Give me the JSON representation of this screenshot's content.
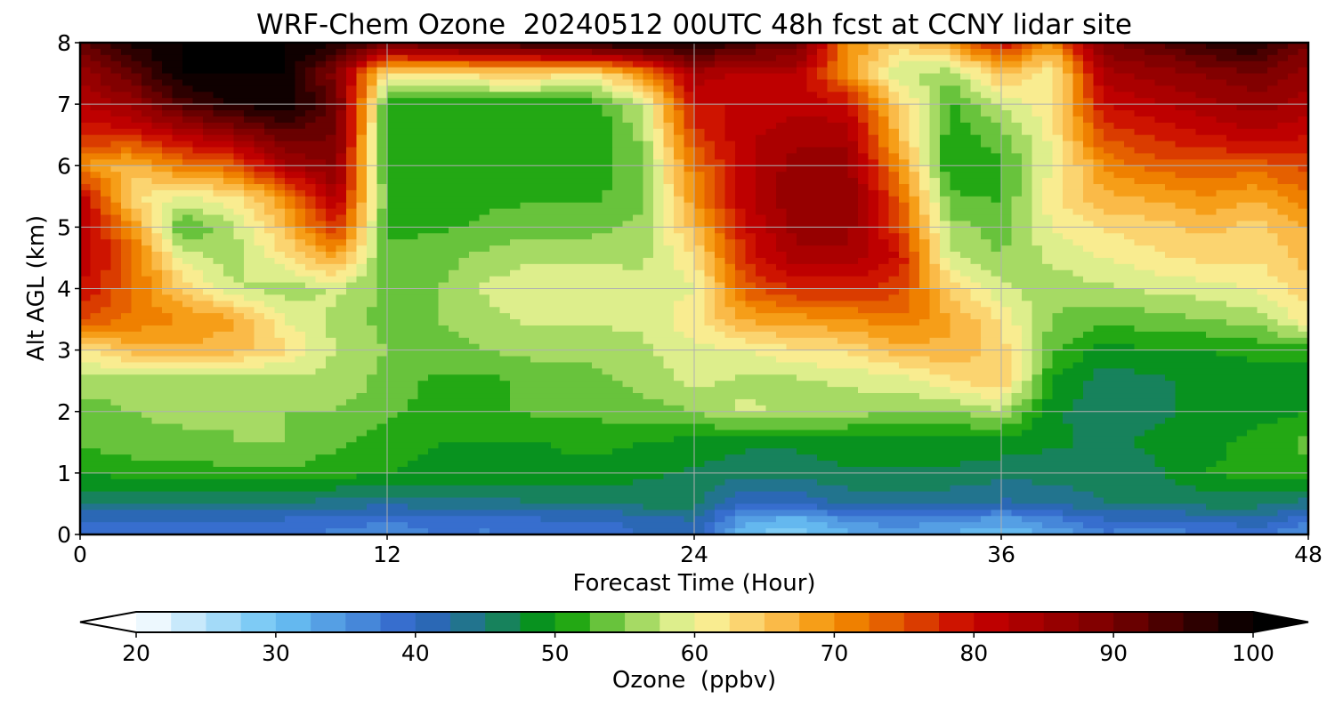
{
  "chart_data": {
    "type": "heatmap",
    "title": "WRF-Chem Ozone  20240512 00UTC 48h fcst at CCNY lidar site",
    "xlabel": "Forecast Time (Hour)",
    "ylabel": "Alt AGL (km)",
    "xlim": [
      0,
      48
    ],
    "ylim": [
      0,
      8
    ],
    "x_ticks": [
      0,
      12,
      24,
      36,
      48
    ],
    "y_ticks": [
      0,
      1,
      2,
      3,
      4,
      5,
      6,
      7,
      8
    ],
    "grid": true,
    "colorbar": {
      "label": "Ozone  (ppbv)",
      "min": 20,
      "max": 100,
      "ticks": [
        20,
        30,
        40,
        50,
        60,
        70,
        80,
        90,
        100
      ],
      "extend": "both",
      "orientation": "horizontal",
      "placement": "bottom",
      "color_stops": [
        {
          "value": 20,
          "color": "#ffffff"
        },
        {
          "value": 30,
          "color": "#6cc4f4"
        },
        {
          "value": 40,
          "color": "#2f62c8"
        },
        {
          "value": 45,
          "color": "#1e7a7a"
        },
        {
          "value": 50,
          "color": "#009a00"
        },
        {
          "value": 55,
          "color": "#8ad050"
        },
        {
          "value": 60,
          "color": "#f8f8a0"
        },
        {
          "value": 65,
          "color": "#fcc860"
        },
        {
          "value": 70,
          "color": "#f49000"
        },
        {
          "value": 75,
          "color": "#e05000"
        },
        {
          "value": 80,
          "color": "#c80000"
        },
        {
          "value": 90,
          "color": "#780000"
        },
        {
          "value": 100,
          "color": "#000000"
        }
      ],
      "under_color": "#ffffff",
      "over_color": "#000000"
    },
    "z_grid": {
      "x": [
        0,
        2,
        4,
        6,
        8,
        10,
        12,
        14,
        16,
        18,
        20,
        22,
        24,
        26,
        28,
        30,
        32,
        34,
        36,
        38,
        40,
        42,
        44,
        46,
        48
      ],
      "y": [
        0,
        0.25,
        0.5,
        1,
        1.5,
        2,
        2.5,
        3,
        3.5,
        4,
        4.5,
        5,
        5.5,
        6,
        6.5,
        7,
        7.5,
        8
      ],
      "values": [
        [
          38,
          38,
          38,
          38,
          38,
          37,
          35,
          38,
          37,
          38,
          38,
          40,
          42,
          30,
          28,
          32,
          33,
          32,
          30,
          33,
          37,
          36,
          37,
          38,
          34
        ],
        [
          40,
          40,
          40,
          40,
          40,
          39,
          38,
          39,
          39,
          40,
          40,
          41,
          43,
          33,
          32,
          36,
          37,
          36,
          34,
          37,
          40,
          40,
          41,
          42,
          38
        ],
        [
          45,
          45,
          45,
          45,
          45,
          44,
          43,
          44,
          44,
          45,
          45,
          46,
          46,
          40,
          40,
          43,
          43,
          43,
          42,
          43,
          45,
          45,
          46,
          46,
          44
        ],
        [
          50,
          51,
          51,
          52,
          52,
          51,
          50,
          49,
          49,
          49,
          49,
          48,
          47,
          46,
          46,
          47,
          47,
          47,
          46,
          46,
          46,
          47,
          50,
          51,
          52
        ],
        [
          53,
          54,
          54,
          55,
          55,
          53,
          51,
          50,
          50,
          50,
          51,
          50,
          49,
          48,
          48,
          49,
          49,
          49,
          49,
          48,
          47,
          48,
          49,
          51,
          53
        ],
        [
          54,
          55,
          56,
          55,
          55,
          55,
          53,
          51,
          52,
          53,
          53,
          54,
          55,
          58,
          57,
          56,
          55,
          55,
          57,
          48,
          46,
          47,
          48,
          49,
          50
        ],
        [
          56,
          56,
          56,
          56,
          56,
          57,
          54,
          52,
          52,
          53,
          54,
          56,
          58,
          57,
          57,
          58,
          59,
          62,
          65,
          50,
          46,
          47,
          48,
          48,
          49
        ],
        [
          62,
          66,
          67,
          66,
          63,
          57,
          55,
          54,
          55,
          56,
          56,
          57,
          59,
          60,
          62,
          63,
          66,
          67,
          64,
          53,
          49,
          50,
          50,
          51,
          51
        ],
        [
          75,
          72,
          70,
          68,
          60,
          57,
          54,
          55,
          57,
          58,
          58,
          58,
          62,
          68,
          69,
          70,
          72,
          68,
          62,
          55,
          53,
          54,
          55,
          56,
          62
        ],
        [
          80,
          73,
          64,
          58,
          56,
          58,
          54,
          55,
          58,
          60,
          60,
          58,
          60,
          74,
          78,
          78,
          76,
          64,
          58,
          56,
          57,
          58,
          59,
          60,
          64
        ],
        [
          82,
          74,
          59,
          56,
          62,
          68,
          53,
          54,
          56,
          57,
          57,
          57,
          62,
          78,
          84,
          84,
          80,
          58,
          55,
          58,
          60,
          62,
          63,
          63,
          66
        ],
        [
          84,
          70,
          52,
          57,
          66,
          78,
          52,
          52,
          53,
          54,
          54,
          56,
          66,
          80,
          86,
          86,
          76,
          56,
          54,
          60,
          63,
          64,
          66,
          64,
          68
        ],
        [
          82,
          63,
          60,
          62,
          70,
          84,
          52,
          51,
          52,
          52,
          52,
          54,
          70,
          82,
          87,
          87,
          74,
          53,
          52,
          62,
          67,
          68,
          70,
          68,
          72
        ],
        [
          70,
          66,
          72,
          74,
          84,
          88,
          51,
          50,
          50,
          50,
          51,
          54,
          72,
          82,
          86,
          86,
          70,
          50,
          52,
          60,
          70,
          74,
          74,
          74,
          76
        ],
        [
          78,
          78,
          82,
          86,
          92,
          90,
          50,
          50,
          50,
          50,
          50,
          56,
          76,
          82,
          84,
          84,
          66,
          51,
          54,
          61,
          76,
          78,
          80,
          82,
          80
        ],
        [
          82,
          86,
          94,
          98,
          99,
          92,
          51,
          51,
          51,
          51,
          51,
          58,
          80,
          80,
          82,
          80,
          64,
          52,
          58,
          62,
          80,
          82,
          84,
          86,
          84
        ],
        [
          86,
          92,
          100,
          100,
          100,
          88,
          62,
          62,
          64,
          64,
          62,
          70,
          84,
          82,
          82,
          70,
          58,
          56,
          66,
          60,
          84,
          86,
          88,
          90,
          86
        ],
        [
          92,
          98,
          100,
          100,
          100,
          98,
          92,
          94,
          95,
          96,
          98,
          99,
          99,
          94,
          92,
          70,
          64,
          68,
          80,
          70,
          90,
          92,
          96,
          98,
          90
        ]
      ]
    }
  }
}
